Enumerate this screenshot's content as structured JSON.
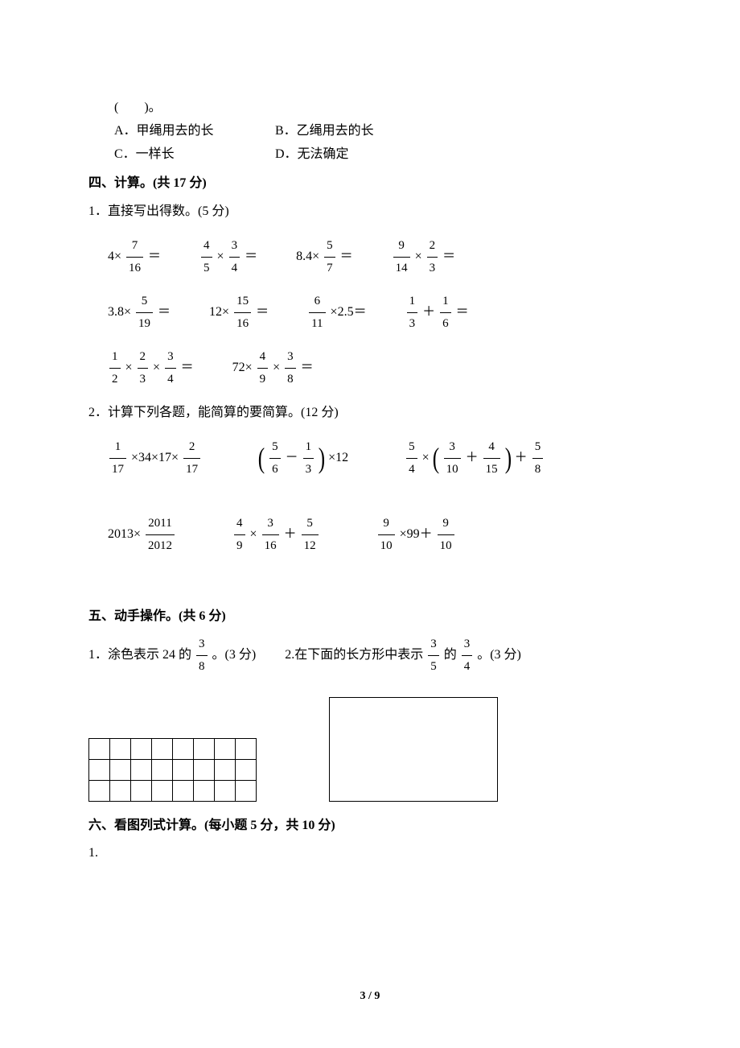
{
  "q_prev": {
    "blank": "(　　)。",
    "opt_a": "A．甲绳用去的长",
    "opt_b": "B．乙绳用去的长",
    "opt_c": "C．一样长",
    "opt_d": "D．无法确定"
  },
  "s4": {
    "title": "四、计算。(共 17 分)",
    "q1": "1．直接写出得数。(5 分)",
    "q2": "2．计算下列各题，能简算的要简算。(12 分)",
    "r1": {
      "a_pre": "4×",
      "a_num": "7",
      "a_den": "16",
      "a_post": "＝",
      "b_n1": "4",
      "b_d1": "5",
      "b_mid": "×",
      "b_n2": "3",
      "b_d2": "4",
      "b_post": "＝",
      "c_pre": "8.4×",
      "c_num": "5",
      "c_den": "7",
      "c_post": "＝",
      "d_n1": "9",
      "d_d1": "14",
      "d_mid": "×",
      "d_n2": "2",
      "d_d2": "3",
      "d_post": "＝"
    },
    "r2": {
      "a_pre": "3.8×",
      "a_num": "5",
      "a_den": "19",
      "a_post": "＝",
      "b_pre": "12×",
      "b_num": "15",
      "b_den": "16",
      "b_post": "＝",
      "c_num": "6",
      "c_den": "11",
      "c_post": "×2.5＝",
      "d_n1": "1",
      "d_d1": "3",
      "d_mid": "＋",
      "d_n2": "1",
      "d_d2": "6",
      "d_post": "＝"
    },
    "r3": {
      "a_n1": "1",
      "a_d1": "2",
      "a_m1": "×",
      "a_n2": "2",
      "a_d2": "3",
      "a_m2": "×",
      "a_n3": "3",
      "a_d3": "4",
      "a_post": "＝",
      "b_pre": "72×",
      "b_n1": "4",
      "b_d1": "9",
      "b_mid": "×",
      "b_n2": "3",
      "b_d2": "8",
      "b_post": "＝"
    },
    "r4": {
      "a_n1": "1",
      "a_d1": "17",
      "a_mid": "×34×17×",
      "a_n2": "2",
      "a_d2": "17",
      "b_n1": "5",
      "b_d1": "6",
      "b_mid": "－",
      "b_n2": "1",
      "b_d2": "3",
      "b_post": "×12",
      "c_n1": "5",
      "c_d1": "4",
      "c_m1": "×",
      "c_n2": "3",
      "c_d2": "10",
      "c_m2": "＋",
      "c_n3": "4",
      "c_d3": "15",
      "c_m3": "＋",
      "c_n4": "5",
      "c_d4": "8"
    },
    "r5": {
      "a_pre": "2013×",
      "a_num": "2011",
      "a_den": "2012",
      "b_n1": "4",
      "b_d1": "9",
      "b_m1": "×",
      "b_n2": "3",
      "b_d2": "16",
      "b_m2": "＋",
      "b_n3": "5",
      "b_d3": "12",
      "c_n1": "9",
      "c_d1": "10",
      "c_mid": "×99＋",
      "c_n2": "9",
      "c_d2": "10"
    }
  },
  "s5": {
    "title": "五、动手操作。(共 6 分)",
    "q1_pre": "1．涂色表示 24 的",
    "q1_num": "3",
    "q1_den": "8",
    "q1_post": "。(3 分)",
    "q2_pre": "2.在下面的长方形中表示",
    "q2_n1": "3",
    "q2_d1": "5",
    "q2_mid": "的",
    "q2_n2": "3",
    "q2_d2": "4",
    "q2_post": "。(3 分)",
    "grid_rows": 3,
    "grid_cols": 8
  },
  "s6": {
    "title": "六、看图列式计算。(每小题 5 分，共 10 分)",
    "q1": "1."
  },
  "footer": {
    "page": "3 / 9"
  }
}
